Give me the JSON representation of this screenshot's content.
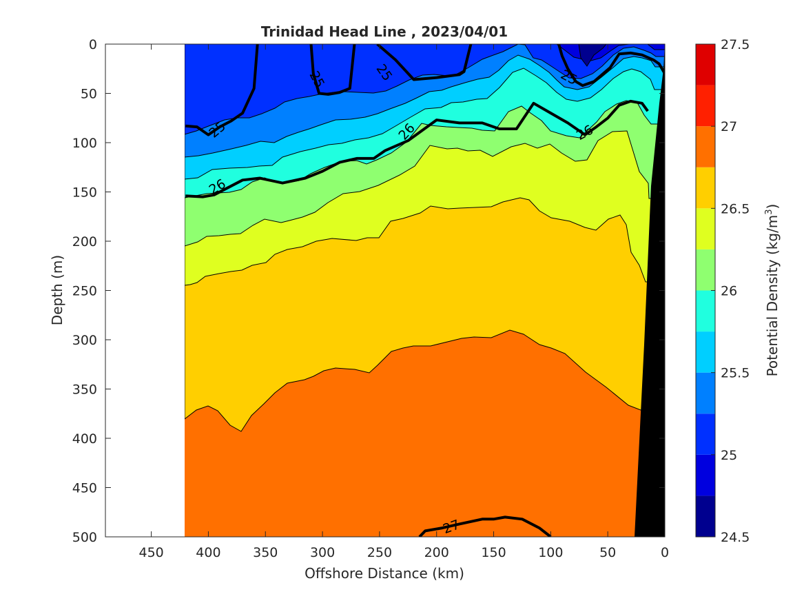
{
  "chart_data": {
    "type": "filled-contour",
    "title": "Trinidad Head Line , 2023/04/01",
    "xlabel": "Offshore Distance (km)",
    "ylabel": "Depth (m)",
    "colorbar_label": "Potential Density (kg/m",
    "colorbar_label_sup": "3",
    "colorbar_label_close": ")",
    "xlim": [
      490,
      0
    ],
    "x_reversed": true,
    "ylim": [
      0,
      500
    ],
    "y_reversed": true,
    "x_ticks": [
      450,
      400,
      350,
      300,
      250,
      200,
      150,
      100,
      50,
      0
    ],
    "y_ticks": [
      0,
      50,
      100,
      150,
      200,
      250,
      300,
      350,
      400,
      450,
      500
    ],
    "colorbar_range": [
      24.5,
      27.5
    ],
    "colorbar_ticks": [
      24.5,
      25,
      25.5,
      26,
      26.5,
      27,
      27.5
    ],
    "contour_interval": 0.25,
    "data_extent_x": [
      420,
      0
    ],
    "contour_colors": [
      "#00008f",
      "#0000df",
      "#0030ff",
      "#0080ff",
      "#00cfff",
      "#20ffdf",
      "#8fff70",
      "#dfff20",
      "#ffcf00",
      "#ff7000",
      "#ff2000",
      "#df0000"
    ],
    "bottom_color": "#000000",
    "contours": [
      {
        "level": 25,
        "x": [
          420,
          410,
          400,
          390,
          380,
          370,
          360,
          357
        ],
        "y": [
          83,
          84,
          92,
          84,
          78,
          70,
          45,
          0
        ]
      },
      {
        "level": 25,
        "x": [
          310,
          308,
          303,
          295,
          285,
          276,
          272
        ],
        "y": [
          0,
          30,
          50,
          51,
          49,
          45,
          0
        ]
      },
      {
        "level": 25,
        "x": [
          252,
          245,
          236,
          220,
          200,
          180,
          176,
          170
        ],
        "y": [
          0,
          7,
          16,
          36,
          34,
          31,
          28,
          0
        ]
      },
      {
        "level": 25,
        "x": [
          93,
          90,
          85,
          78,
          72,
          62,
          48,
          40,
          30,
          20,
          10,
          5,
          0
        ],
        "y": [
          0,
          12,
          25,
          38,
          42,
          38,
          24,
          10,
          9,
          11,
          16,
          20,
          30
        ]
      },
      {
        "level": 26,
        "x": [
          420,
          405,
          395,
          385,
          370,
          355,
          335,
          315,
          300,
          285,
          270,
          255,
          245,
          225,
          200,
          180,
          160,
          145,
          130,
          115,
          100,
          85,
          70,
          60,
          50,
          40,
          30,
          20,
          15
        ],
        "y": [
          154,
          155,
          153,
          147,
          138,
          136,
          141,
          136,
          129,
          120,
          116,
          116,
          108,
          98,
          77,
          80,
          80,
          86,
          86,
          60,
          70,
          80,
          92,
          84,
          75,
          62,
          58,
          60,
          68
        ]
      },
      {
        "level": 27,
        "x": [
          215,
          210,
          195,
          180,
          160,
          150,
          140,
          125,
          110,
          100
        ],
        "y": [
          500,
          494,
          491,
          487,
          482,
          482,
          480,
          482,
          491,
          500
        ]
      }
    ],
    "contour_labels": [
      {
        "text": "25",
        "x": 392,
        "y": 87,
        "rotate": -40
      },
      {
        "text": "25",
        "x": 305,
        "y": 36,
        "rotate": 62
      },
      {
        "text": "25",
        "x": 246,
        "y": 29,
        "rotate": 55
      },
      {
        "text": "25",
        "x": 84,
        "y": 34,
        "rotate": 28
      },
      {
        "text": "26",
        "x": 392,
        "y": 145,
        "rotate": -30
      },
      {
        "text": "26",
        "x": 226,
        "y": 89,
        "rotate": -48
      },
      {
        "text": "26",
        "x": 70,
        "y": 90,
        "rotate": -28
      },
      {
        "text": "27",
        "x": 187,
        "y": 490,
        "rotate": -20
      }
    ]
  }
}
